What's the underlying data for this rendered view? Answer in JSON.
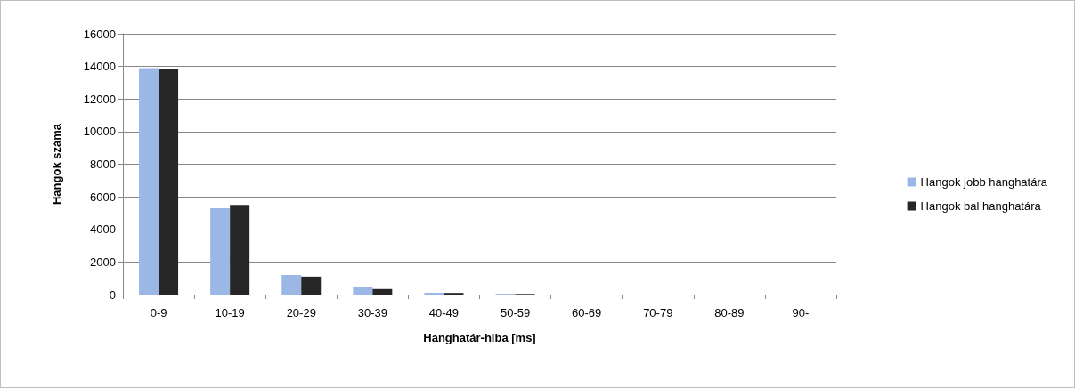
{
  "chart_data": {
    "type": "bar",
    "xlabel": "Hanghatár-hiba [ms]",
    "ylabel": "Hangok száma",
    "categories": [
      "0-9",
      "10-19",
      "20-29",
      "30-39",
      "40-49",
      "50-59",
      "60-69",
      "70-79",
      "80-89",
      "90-"
    ],
    "series": [
      {
        "name": "Hangok jobb hanghatára",
        "color": "#9bb7e6",
        "values": [
          13900,
          5300,
          1200,
          450,
          110,
          50,
          null,
          null,
          null,
          null
        ]
      },
      {
        "name": "Hangok bal hanghatára",
        "color": "#262626",
        "values": [
          13850,
          5500,
          1100,
          340,
          100,
          40,
          null,
          null,
          null,
          null
        ]
      }
    ],
    "ylim": [
      0,
      16000
    ],
    "yticks": [
      0,
      2000,
      4000,
      6000,
      8000,
      10000,
      12000,
      14000,
      16000
    ],
    "grid": "y",
    "legend": "right"
  }
}
